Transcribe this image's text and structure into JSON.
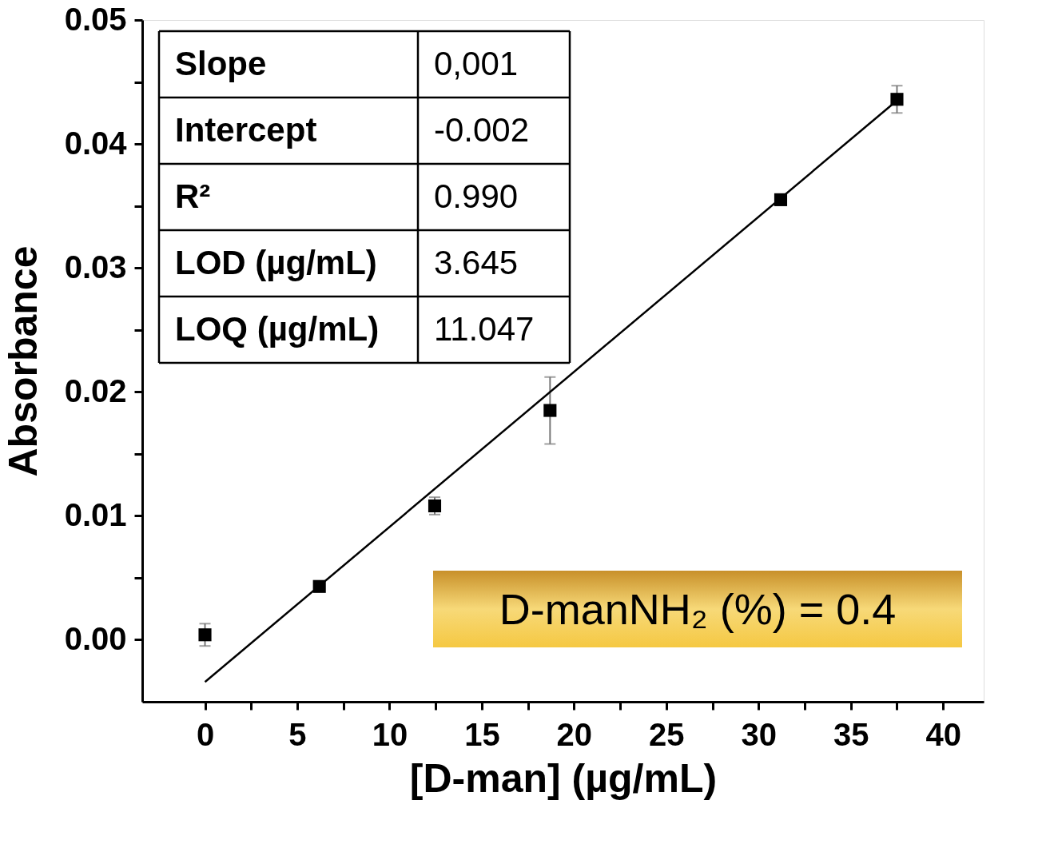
{
  "chart_data": {
    "type": "scatter",
    "xlabel": "[D-man] (µg/mL)",
    "ylabel": "Absorbance",
    "x": [
      0,
      6.2,
      12.45,
      18.7,
      31.2,
      37.5
    ],
    "series": [
      {
        "color": "#000000",
        "values": [
          0.0004,
          0.0043,
          0.0108,
          0.0185,
          0.0355,
          0.0436
        ],
        "errors": [
          0.0009,
          null,
          0.0007,
          0.0027,
          null,
          0.0011
        ],
        "marker": "square"
      },
      {
        "type": "line",
        "color": "#000000",
        "x": [
          0,
          37.5
        ],
        "values": [
          -0.0034,
          0.0435
        ],
        "line_style": "solid"
      }
    ],
    "xlim": [
      -3.4,
      42.2
    ],
    "ylim": [
      -0.005,
      0.05
    ],
    "xticks": [
      0,
      {
        "value": 2.5,
        "label": null
      },
      5,
      {
        "value": 7.5,
        "label": null
      },
      10,
      {
        "value": 12.5,
        "label": null
      },
      15,
      {
        "value": 17.5,
        "label": null
      },
      20,
      {
        "value": 22.5,
        "label": null
      },
      25,
      {
        "value": 27.5,
        "label": null
      },
      30,
      {
        "value": 32.5,
        "label": null
      },
      35,
      {
        "value": 37.5,
        "label": null
      },
      40
    ],
    "yticks": [
      {
        "value": 0,
        "label": "0.00"
      },
      {
        "value": 0.005,
        "label": null
      },
      {
        "value": 0.01,
        "label": "0.01"
      },
      {
        "value": 0.015,
        "label": null
      },
      {
        "value": 0.02,
        "label": "0.02"
      },
      {
        "value": 0.025,
        "label": null
      },
      {
        "value": 0.03,
        "label": "0.03"
      },
      {
        "value": 0.035,
        "label": null
      },
      {
        "value": 0.04,
        "label": "0.04"
      },
      {
        "value": 0.045,
        "label": null
      },
      {
        "value": 0.05,
        "label": "0.05"
      }
    ],
    "grid": false,
    "legend": false,
    "annotations": [
      "Slope",
      "0,001",
      "Intercept",
      "-0.002",
      "R²",
      "0.990",
      "LOD (µg/mL)",
      "3.645",
      "LOQ (µg/mL)",
      "11.047",
      "D-manNH₂ (%) = 0.4"
    ]
  }
}
